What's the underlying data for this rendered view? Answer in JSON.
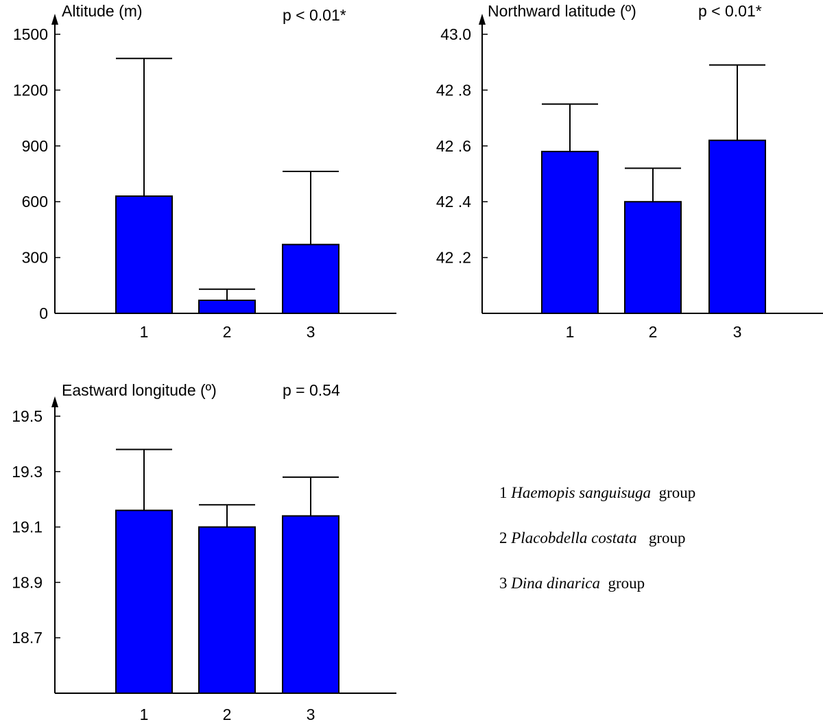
{
  "chart_data": [
    {
      "type": "bar",
      "title": "Altitude (m)",
      "p_value": "p < 0.01*",
      "categories": [
        "1",
        "2",
        "3"
      ],
      "values": [
        630,
        70,
        370
      ],
      "error_upper": [
        1370,
        130,
        763
      ],
      "ylim": [
        0,
        1500
      ],
      "yticks": [
        0,
        300,
        600,
        900,
        1200,
        1500
      ],
      "ytick_labels": [
        "0",
        "300",
        "600",
        "900",
        "1200",
        "1500"
      ],
      "bar_color": "#0000ff"
    },
    {
      "type": "bar",
      "title": "Northward latitude (º)",
      "p_value": "p < 0.01*",
      "categories": [
        "1",
        "2",
        "3"
      ],
      "values": [
        42.58,
        42.4,
        42.62
      ],
      "error_upper": [
        42.75,
        42.52,
        42.89
      ],
      "ylim": [
        42.0,
        43.0
      ],
      "yticks": [
        42.2,
        42.4,
        42.6,
        42.8,
        43.0
      ],
      "ytick_labels": [
        "42 .2",
        "42 .4",
        "42 .6",
        "42 .8",
        "43.0"
      ],
      "bar_color": "#0000ff"
    },
    {
      "type": "bar",
      "title": "Eastward longitude (º)",
      "p_value": "p = 0.54",
      "categories": [
        "1",
        "2",
        "3"
      ],
      "values": [
        19.16,
        19.1,
        19.14
      ],
      "error_upper": [
        19.38,
        19.18,
        19.28
      ],
      "ylim": [
        18.5,
        19.5
      ],
      "yticks": [
        18.7,
        18.9,
        19.1,
        19.3,
        19.5
      ],
      "ytick_labels": [
        "18.7",
        "18.9",
        "19.1",
        "19.3",
        "19.5"
      ],
      "bar_color": "#0000ff"
    }
  ],
  "legend": [
    {
      "number": "1",
      "species": "Haemopis sanguisuga",
      "suffix": "group"
    },
    {
      "number": "2",
      "species": "Placobdella costata",
      "suffix": "group"
    },
    {
      "number": "3",
      "species": "Dina dinarica",
      "suffix": "group"
    }
  ]
}
